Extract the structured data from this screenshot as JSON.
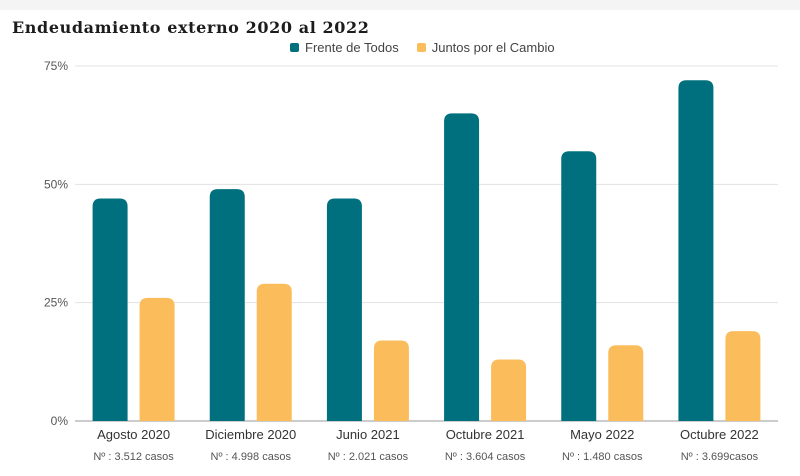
{
  "chart_data": {
    "type": "bar",
    "title": "Endeudamiento externo 2020 al 2022",
    "categories": [
      "Agosto 2020",
      "Diciembre 2020",
      "Junio 2021",
      "Octubre 2021",
      "Mayo 2022",
      "Octubre 2022"
    ],
    "notes": [
      "Nº : 3.512 casos",
      "Nº : 4.998 casos",
      "Nº : 2.021 casos",
      "Nº : 3.604 casos",
      "Nº : 1.480 casos",
      "Nº : 3.699casos"
    ],
    "series": [
      {
        "name": "Frente de Todos",
        "color": "#00707f",
        "values": [
          47,
          49,
          47,
          65,
          57,
          72
        ]
      },
      {
        "name": "Juntos por el Cambio",
        "color": "#fbbd5c",
        "values": [
          26,
          29,
          17,
          13,
          16,
          19
        ]
      }
    ],
    "ylim": [
      0,
      75
    ],
    "yticks": [
      0,
      25,
      50,
      75
    ],
    "ytick_labels": [
      "0%",
      "25%",
      "50%",
      "75%"
    ],
    "grid": true,
    "legend_position": "top"
  }
}
